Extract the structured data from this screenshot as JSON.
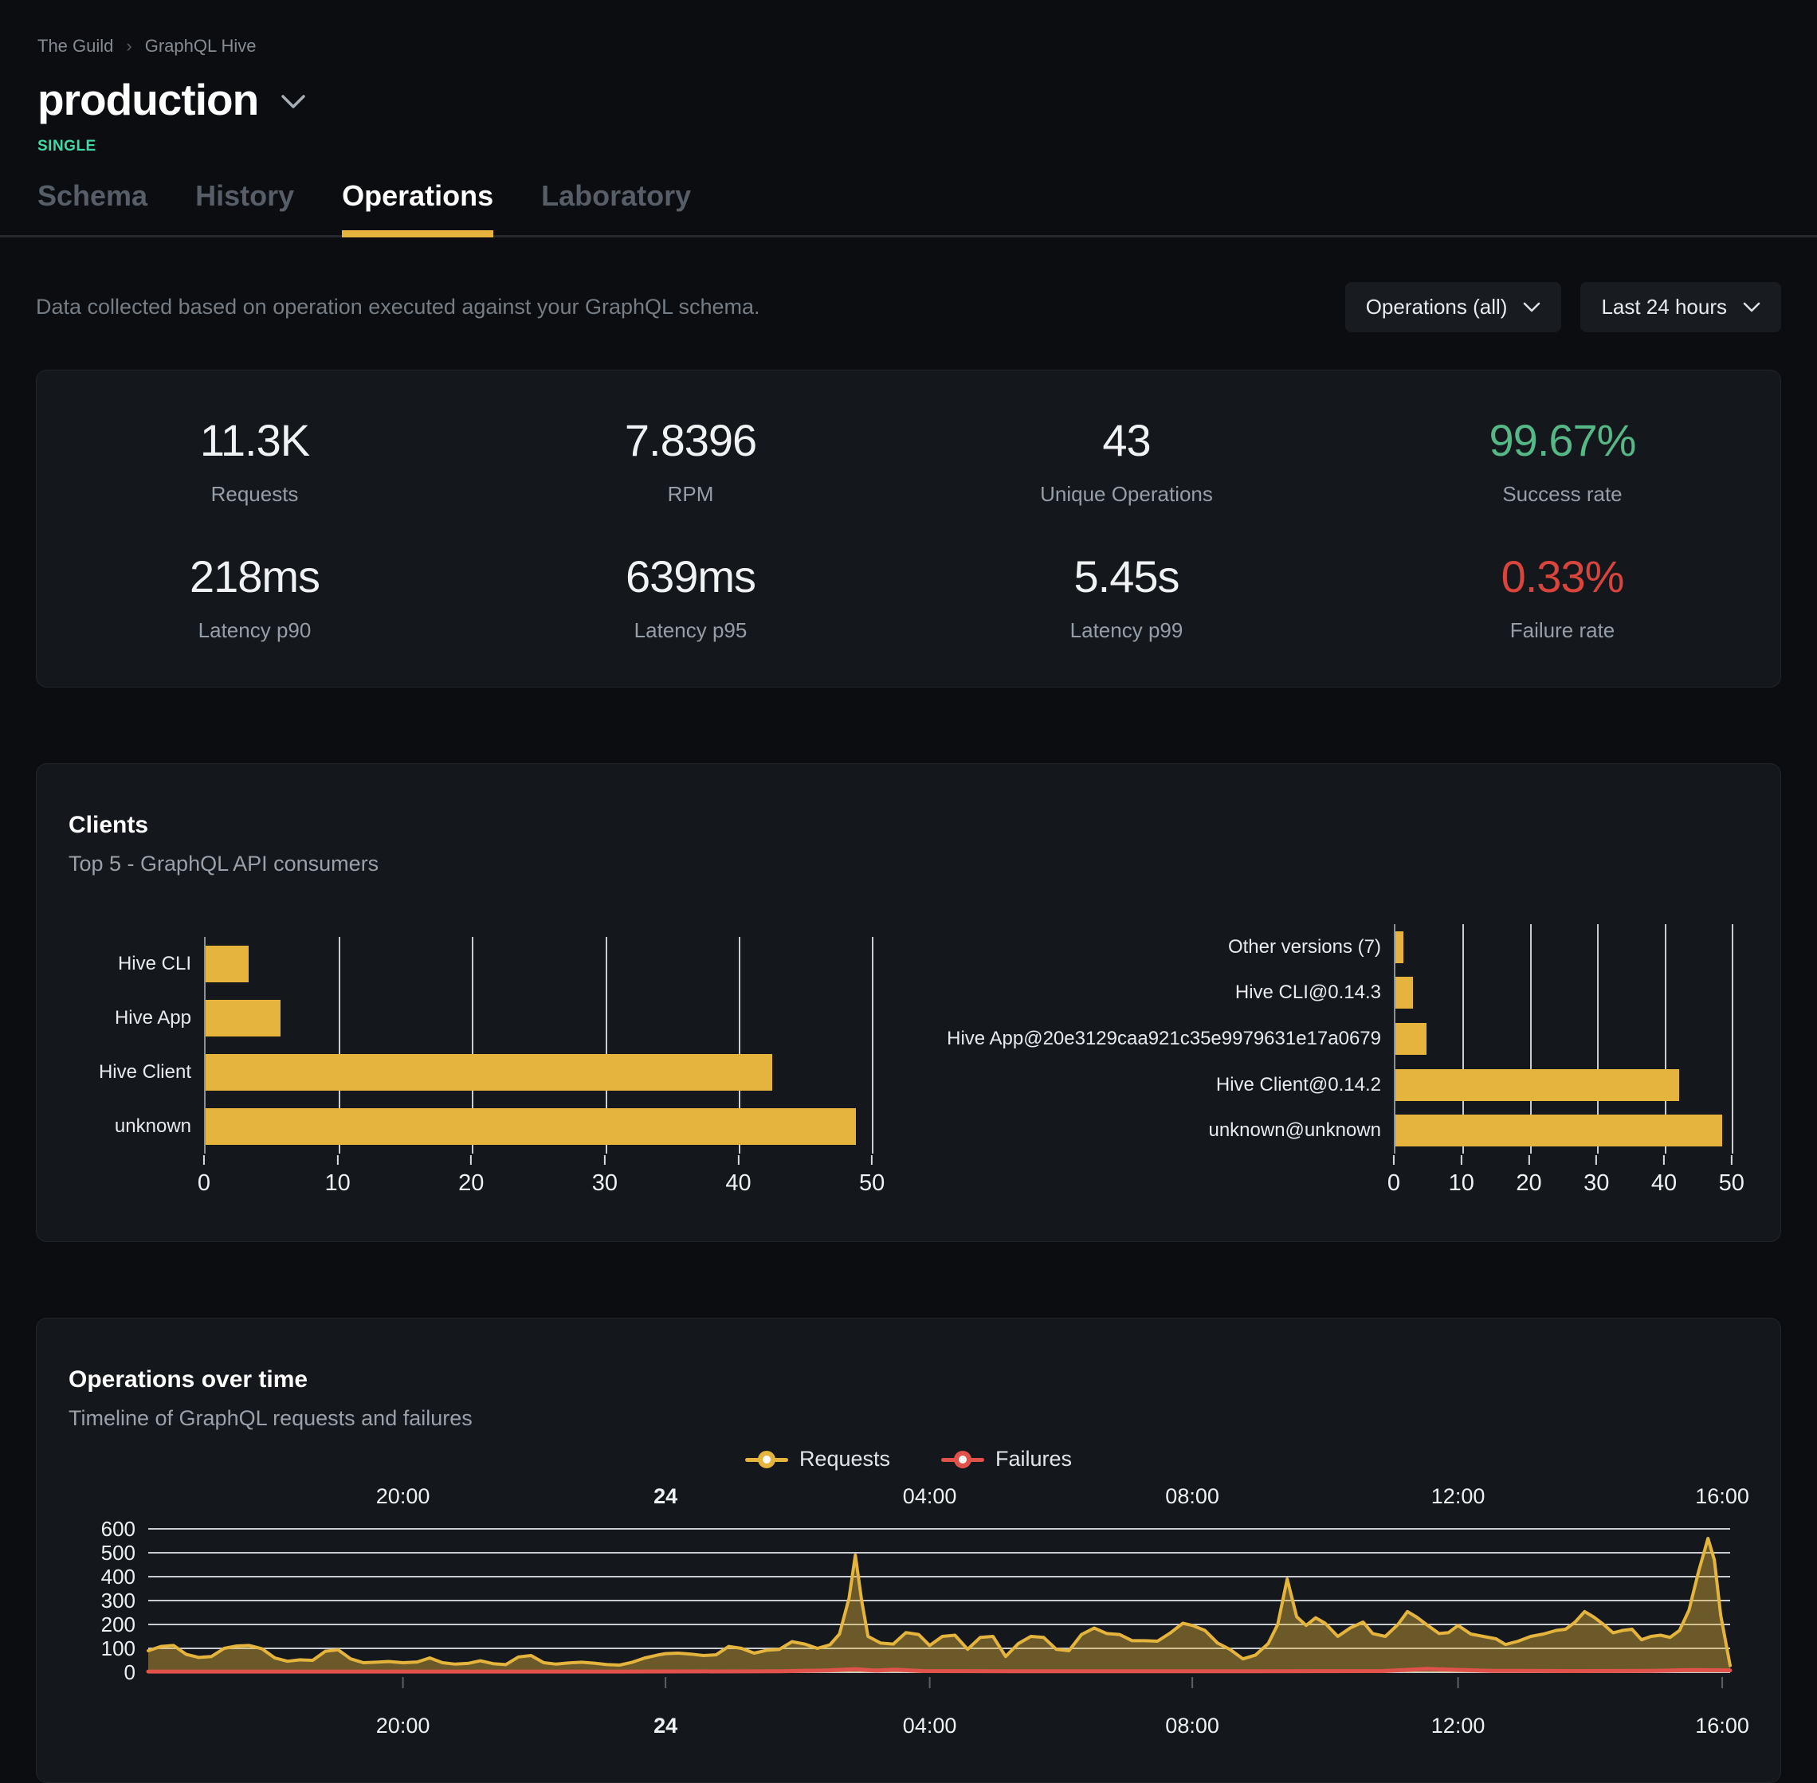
{
  "colors": {
    "accent": "#e5b43c",
    "requests": "#e5b43c",
    "failures": "#e0524a",
    "success": "#56b887",
    "failure": "#d9453c",
    "badge": "#3fd9a3"
  },
  "header": {
    "breadcrumb": [
      "The Guild",
      "GraphQL Hive"
    ],
    "title": "production",
    "badge": "SINGLE",
    "badge_color": "#3fd9a3"
  },
  "tabs": [
    {
      "label": "Schema"
    },
    {
      "label": "History"
    },
    {
      "label": "Operations"
    },
    {
      "label": "Laboratory"
    }
  ],
  "controls": {
    "description": "Data collected based on operation executed against your GraphQL schema.",
    "operations_filter": "Operations (all)",
    "period_filter": "Last 24 hours"
  },
  "stats": [
    {
      "value": "11.3K",
      "label": "Requests"
    },
    {
      "value": "7.8396",
      "label": "RPM"
    },
    {
      "value": "43",
      "label": "Unique Operations"
    },
    {
      "value": "99.67%",
      "label": "Success rate",
      "value_color": "#56b887"
    },
    {
      "value": "218ms",
      "label": "Latency p90"
    },
    {
      "value": "639ms",
      "label": "Latency p95"
    },
    {
      "value": "5.45s",
      "label": "Latency p99"
    },
    {
      "value": "0.33%",
      "label": "Failure rate",
      "value_color": "#d9453c"
    }
  ],
  "clients": {
    "title": "Clients",
    "subtitle": "Top 5 - GraphQL API consumers"
  },
  "operations": {
    "title": "Operations over time",
    "subtitle": "Timeline of GraphQL requests and failures"
  },
  "chart_data": [
    {
      "id": "clients-by-name",
      "type": "bar",
      "orientation": "horizontal",
      "categories": [
        "Hive CLI",
        "Hive App",
        "Hive Client",
        "unknown"
      ],
      "values": [
        3.2,
        5.6,
        42.5,
        48.8
      ],
      "ticks": [
        0,
        10,
        20,
        30,
        40,
        50
      ],
      "xlim": [
        0,
        52.5
      ],
      "bar_color": "#e5b43c",
      "grid": "vertical"
    },
    {
      "id": "clients-by-version",
      "type": "bar",
      "orientation": "horizontal",
      "categories": [
        "Other versions (7)",
        "Hive CLI@0.14.3",
        "Hive App@20e3129caa921c35e9979631e17a0679",
        "Hive Client@0.14.2",
        "unknown@unknown"
      ],
      "values": [
        1.2,
        2.6,
        4.6,
        42.2,
        48.6
      ],
      "ticks": [
        0,
        10,
        20,
        30,
        40,
        50
      ],
      "xlim": [
        0,
        52.5
      ],
      "bar_color": "#e5b43c",
      "grid": "vertical"
    },
    {
      "id": "operations-over-time",
      "type": "area",
      "title": "Operations over time",
      "x_axis": "time (last 24 hours), labels shown top and bottom",
      "x_ticks": [
        {
          "pos": 0.161,
          "label": "20:00"
        },
        {
          "pos": 0.327,
          "label": "24",
          "bold": true
        },
        {
          "pos": 0.494,
          "label": "04:00"
        },
        {
          "pos": 0.66,
          "label": "08:00"
        },
        {
          "pos": 0.828,
          "label": "12:00"
        },
        {
          "pos": 0.995,
          "label": "16:00"
        }
      ],
      "y_ticks": [
        0,
        100,
        200,
        300,
        400,
        500,
        600
      ],
      "ylim": [
        0,
        620
      ],
      "grid": "horizontal",
      "legend_position": "top-center",
      "series": [
        {
          "name": "Requests",
          "color": "#e5b43c",
          "fill": "rgba(229,180,60,0.42)",
          "points": [
            [
              0,
              90
            ],
            [
              0.008,
              108
            ],
            [
              0.016,
              112
            ],
            [
              0.024,
              75
            ],
            [
              0.032,
              62
            ],
            [
              0.04,
              66
            ],
            [
              0.048,
              100
            ],
            [
              0.056,
              110
            ],
            [
              0.064,
              112
            ],
            [
              0.072,
              98
            ],
            [
              0.08,
              60
            ],
            [
              0.088,
              46
            ],
            [
              0.096,
              52
            ],
            [
              0.104,
              50
            ],
            [
              0.112,
              88
            ],
            [
              0.12,
              94
            ],
            [
              0.128,
              56
            ],
            [
              0.136,
              40
            ],
            [
              0.144,
              42
            ],
            [
              0.152,
              45
            ],
            [
              0.161,
              40
            ],
            [
              0.17,
              43
            ],
            [
              0.178,
              60
            ],
            [
              0.186,
              40
            ],
            [
              0.194,
              34
            ],
            [
              0.202,
              37
            ],
            [
              0.21,
              48
            ],
            [
              0.218,
              36
            ],
            [
              0.226,
              32
            ],
            [
              0.234,
              64
            ],
            [
              0.242,
              70
            ],
            [
              0.25,
              40
            ],
            [
              0.258,
              34
            ],
            [
              0.266,
              39
            ],
            [
              0.274,
              42
            ],
            [
              0.282,
              38
            ],
            [
              0.29,
              32
            ],
            [
              0.298,
              30
            ],
            [
              0.306,
              42
            ],
            [
              0.314,
              60
            ],
            [
              0.322,
              72
            ],
            [
              0.327,
              78
            ],
            [
              0.335,
              80
            ],
            [
              0.343,
              76
            ],
            [
              0.351,
              70
            ],
            [
              0.359,
              73
            ],
            [
              0.367,
              108
            ],
            [
              0.375,
              100
            ],
            [
              0.383,
              80
            ],
            [
              0.391,
              92
            ],
            [
              0.399,
              96
            ],
            [
              0.407,
              128
            ],
            [
              0.415,
              118
            ],
            [
              0.423,
              100
            ],
            [
              0.431,
              115
            ],
            [
              0.437,
              160
            ],
            [
              0.443,
              310
            ],
            [
              0.447,
              490
            ],
            [
              0.451,
              300
            ],
            [
              0.455,
              150
            ],
            [
              0.463,
              122
            ],
            [
              0.471,
              118
            ],
            [
              0.479,
              166
            ],
            [
              0.487,
              158
            ],
            [
              0.494,
              112
            ],
            [
              0.502,
              150
            ],
            [
              0.51,
              155
            ],
            [
              0.518,
              96
            ],
            [
              0.526,
              146
            ],
            [
              0.534,
              150
            ],
            [
              0.542,
              66
            ],
            [
              0.55,
              120
            ],
            [
              0.558,
              150
            ],
            [
              0.566,
              146
            ],
            [
              0.574,
              96
            ],
            [
              0.582,
              90
            ],
            [
              0.59,
              158
            ],
            [
              0.598,
              185
            ],
            [
              0.606,
              162
            ],
            [
              0.614,
              158
            ],
            [
              0.622,
              132
            ],
            [
              0.63,
              132
            ],
            [
              0.638,
              130
            ],
            [
              0.646,
              164
            ],
            [
              0.654,
              205
            ],
            [
              0.66,
              196
            ],
            [
              0.668,
              175
            ],
            [
              0.676,
              122
            ],
            [
              0.684,
              95
            ],
            [
              0.692,
              56
            ],
            [
              0.7,
              72
            ],
            [
              0.708,
              120
            ],
            [
              0.714,
              200
            ],
            [
              0.72,
              390
            ],
            [
              0.726,
              232
            ],
            [
              0.732,
              196
            ],
            [
              0.738,
              228
            ],
            [
              0.744,
              205
            ],
            [
              0.752,
              150
            ],
            [
              0.76,
              186
            ],
            [
              0.768,
              210
            ],
            [
              0.774,
              162
            ],
            [
              0.782,
              150
            ],
            [
              0.79,
              200
            ],
            [
              0.796,
              254
            ],
            [
              0.802,
              230
            ],
            [
              0.808,
              200
            ],
            [
              0.816,
              162
            ],
            [
              0.822,
              166
            ],
            [
              0.828,
              196
            ],
            [
              0.836,
              160
            ],
            [
              0.844,
              150
            ],
            [
              0.852,
              140
            ],
            [
              0.858,
              116
            ],
            [
              0.866,
              130
            ],
            [
              0.874,
              150
            ],
            [
              0.882,
              160
            ],
            [
              0.89,
              175
            ],
            [
              0.896,
              180
            ],
            [
              0.902,
              210
            ],
            [
              0.908,
              254
            ],
            [
              0.914,
              230
            ],
            [
              0.92,
              200
            ],
            [
              0.926,
              165
            ],
            [
              0.932,
              175
            ],
            [
              0.938,
              180
            ],
            [
              0.944,
              136
            ],
            [
              0.95,
              150
            ],
            [
              0.956,
              155
            ],
            [
              0.962,
              146
            ],
            [
              0.968,
              175
            ],
            [
              0.974,
              260
            ],
            [
              0.98,
              420
            ],
            [
              0.986,
              560
            ],
            [
              0.99,
              470
            ],
            [
              0.994,
              240
            ],
            [
              1,
              28
            ]
          ]
        },
        {
          "name": "Failures",
          "color": "#e0524a",
          "points": [
            [
              0,
              3
            ],
            [
              0.1,
              3
            ],
            [
              0.2,
              3
            ],
            [
              0.3,
              3
            ],
            [
              0.4,
              4
            ],
            [
              0.43,
              8
            ],
            [
              0.447,
              13
            ],
            [
              0.46,
              7
            ],
            [
              0.472,
              11
            ],
            [
              0.49,
              5
            ],
            [
              0.55,
              4
            ],
            [
              0.62,
              4
            ],
            [
              0.7,
              4
            ],
            [
              0.78,
              5
            ],
            [
              0.808,
              14
            ],
            [
              0.828,
              10
            ],
            [
              0.85,
              6
            ],
            [
              0.9,
              5
            ],
            [
              0.95,
              6
            ],
            [
              0.975,
              9
            ],
            [
              1,
              8
            ]
          ]
        }
      ]
    }
  ]
}
